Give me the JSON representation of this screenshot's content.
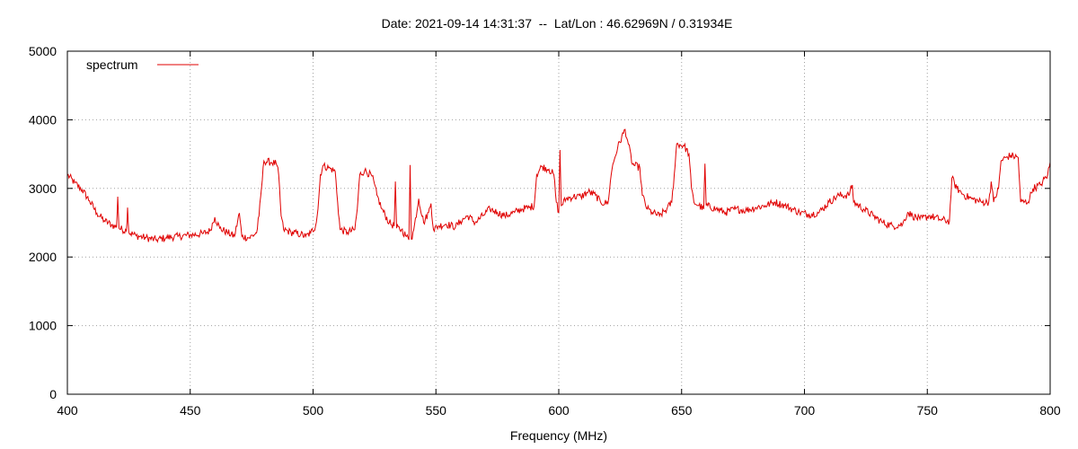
{
  "chart_data": {
    "type": "line",
    "title": "Date: 2021-09-14 14:31:37  --  Lat/Lon : 46.62969N / 0.31934E",
    "xlabel": "Frequency (MHz)",
    "ylabel": "",
    "xlim": [
      400,
      800
    ],
    "ylim": [
      0,
      5000
    ],
    "xticks": [
      400,
      450,
      500,
      550,
      600,
      650,
      700,
      750,
      800
    ],
    "yticks": [
      0,
      1000,
      2000,
      3000,
      4000,
      5000
    ],
    "grid": true,
    "legend_position": "top-left",
    "series": [
      {
        "name": "spectrum",
        "color": "#e00000",
        "points": [
          [
            400,
            3200
          ],
          [
            403,
            3080
          ],
          [
            406,
            2980
          ],
          [
            409,
            2820
          ],
          [
            412,
            2640
          ],
          [
            415,
            2530
          ],
          [
            418,
            2470
          ],
          [
            420,
            2430
          ],
          [
            420.5,
            2880
          ],
          [
            421,
            2420
          ],
          [
            424,
            2380
          ],
          [
            424.5,
            2720
          ],
          [
            425,
            2360
          ],
          [
            428,
            2310
          ],
          [
            432,
            2280
          ],
          [
            436,
            2250
          ],
          [
            440,
            2280
          ],
          [
            445,
            2300
          ],
          [
            450,
            2320
          ],
          [
            455,
            2340
          ],
          [
            458,
            2380
          ],
          [
            460,
            2580
          ],
          [
            462,
            2420
          ],
          [
            465,
            2360
          ],
          [
            468,
            2300
          ],
          [
            470,
            2640
          ],
          [
            471,
            2300
          ],
          [
            474,
            2280
          ],
          [
            477,
            2350
          ],
          [
            478,
            2600
          ],
          [
            479,
            3000
          ],
          [
            480,
            3400
          ],
          [
            483,
            3380
          ],
          [
            485,
            3360
          ],
          [
            486,
            3200
          ],
          [
            487,
            2600
          ],
          [
            488,
            2400
          ],
          [
            491,
            2360
          ],
          [
            495,
            2330
          ],
          [
            497,
            2300
          ],
          [
            499,
            2350
          ],
          [
            501,
            2450
          ],
          [
            502,
            2700
          ],
          [
            503,
            3200
          ],
          [
            504,
            3330
          ],
          [
            507,
            3290
          ],
          [
            509,
            3250
          ],
          [
            510,
            2800
          ],
          [
            511,
            2400
          ],
          [
            514,
            2360
          ],
          [
            517,
            2400
          ],
          [
            518,
            2700
          ],
          [
            519,
            3200
          ],
          [
            521,
            3260
          ],
          [
            524,
            3180
          ],
          [
            526,
            2900
          ],
          [
            528,
            2700
          ],
          [
            531,
            2500
          ],
          [
            533,
            2450
          ],
          [
            533.5,
            3100
          ],
          [
            534,
            2420
          ],
          [
            536,
            2400
          ],
          [
            538,
            2300
          ],
          [
            539,
            2250
          ],
          [
            539.5,
            3340
          ],
          [
            540,
            2260
          ],
          [
            541,
            2400
          ],
          [
            543,
            2850
          ],
          [
            545,
            2500
          ],
          [
            547,
            2650
          ],
          [
            548,
            2780
          ],
          [
            549,
            2400
          ],
          [
            551,
            2450
          ],
          [
            554,
            2480
          ],
          [
            558,
            2440
          ],
          [
            560,
            2520
          ],
          [
            563,
            2600
          ],
          [
            566,
            2500
          ],
          [
            569,
            2600
          ],
          [
            572,
            2700
          ],
          [
            575,
            2650
          ],
          [
            578,
            2600
          ],
          [
            582,
            2650
          ],
          [
            585,
            2700
          ],
          [
            588,
            2720
          ],
          [
            590,
            2750
          ],
          [
            591,
            3200
          ],
          [
            593,
            3320
          ],
          [
            596,
            3280
          ],
          [
            598,
            3200
          ],
          [
            599,
            2800
          ],
          [
            600,
            2650
          ],
          [
            600.5,
            3560
          ],
          [
            601,
            2750
          ],
          [
            603,
            2850
          ],
          [
            606,
            2880
          ],
          [
            609,
            2880
          ],
          [
            612,
            2950
          ],
          [
            615,
            2900
          ],
          [
            617,
            2800
          ],
          [
            620,
            2780
          ],
          [
            621,
            3100
          ],
          [
            622,
            3350
          ],
          [
            624,
            3600
          ],
          [
            627,
            3860
          ],
          [
            628,
            3700
          ],
          [
            630,
            3350
          ],
          [
            633,
            3300
          ],
          [
            634,
            2900
          ],
          [
            636,
            2700
          ],
          [
            638,
            2650
          ],
          [
            641,
            2600
          ],
          [
            644,
            2700
          ],
          [
            646,
            2800
          ],
          [
            647,
            3200
          ],
          [
            648,
            3650
          ],
          [
            651,
            3620
          ],
          [
            653,
            3500
          ],
          [
            654,
            3000
          ],
          [
            655,
            2800
          ],
          [
            657,
            2750
          ],
          [
            659,
            2700
          ],
          [
            659.5,
            3360
          ],
          [
            660,
            2750
          ],
          [
            664,
            2700
          ],
          [
            668,
            2650
          ],
          [
            672,
            2700
          ],
          [
            676,
            2680
          ],
          [
            680,
            2720
          ],
          [
            684,
            2750
          ],
          [
            688,
            2800
          ],
          [
            692,
            2750
          ],
          [
            695,
            2700
          ],
          [
            698,
            2650
          ],
          [
            702,
            2620
          ],
          [
            706,
            2650
          ],
          [
            710,
            2800
          ],
          [
            714,
            2900
          ],
          [
            718,
            2900
          ],
          [
            719.5,
            3050
          ],
          [
            720,
            2800
          ],
          [
            724,
            2700
          ],
          [
            728,
            2600
          ],
          [
            732,
            2500
          ],
          [
            736,
            2450
          ],
          [
            740,
            2480
          ],
          [
            742,
            2650
          ],
          [
            744,
            2600
          ],
          [
            747,
            2550
          ],
          [
            751,
            2600
          ],
          [
            755,
            2550
          ],
          [
            759,
            2520
          ],
          [
            760,
            3150
          ],
          [
            762,
            3000
          ],
          [
            765,
            2900
          ],
          [
            768,
            2850
          ],
          [
            772,
            2800
          ],
          [
            775,
            2800
          ],
          [
            776,
            3100
          ],
          [
            777,
            2800
          ],
          [
            779,
            3000
          ],
          [
            780,
            3400
          ],
          [
            782,
            3450
          ],
          [
            784,
            3480
          ],
          [
            787,
            3450
          ],
          [
            788,
            2800
          ],
          [
            791,
            2800
          ],
          [
            793,
            3000
          ],
          [
            796,
            3050
          ],
          [
            799,
            3200
          ],
          [
            800,
            3380
          ]
        ]
      }
    ]
  }
}
